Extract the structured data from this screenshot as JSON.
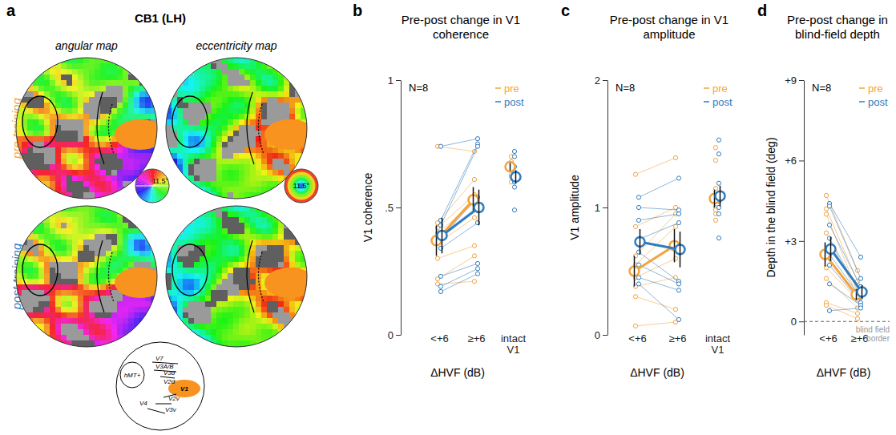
{
  "maps": {
    "label": "a",
    "title": "CB1 (LH)",
    "columns": [
      "angular map",
      "eccentricity map"
    ],
    "rows": [
      "pre-training",
      "post-training"
    ],
    "scale_label": "11.5°",
    "schematic": [
      "V7",
      "V3A/B",
      "V3d",
      "V2d",
      "V1",
      "V4",
      "V2v",
      "V3v",
      "hMT+"
    ]
  },
  "chart_data": [
    {
      "label": "b",
      "type": "scatter",
      "title": "Pre-post change in V1 coherence",
      "annotation": "N=8",
      "x_label": "ΔHVF (dB)",
      "y_label": "V1 coherence",
      "categories": [
        "<+6",
        "≥+6",
        "intact V1"
      ],
      "ylim": [
        0,
        1
      ],
      "yticks": [
        0,
        {
          "value": 0.5,
          "label": ".5"
        },
        1
      ],
      "legend": "top-right",
      "series": [
        {
          "name": "pre",
          "color": "#f4a33d",
          "values": [
            0.37,
            0.53,
            0.66
          ],
          "error": [
            0.06,
            0.05,
            0.015
          ],
          "points": [
            [
              0.74,
              0.44,
              0.42,
              0.4,
              0.36,
              0.3,
              0.22,
              0.2
            ],
            [
              0.72,
              0.61,
              0.55,
              0.52,
              0.46,
              0.35,
              0.31,
              0.21
            ],
            [
              0.7,
              0.68,
              0.67,
              0.66,
              0.65,
              0.63,
              0.62,
              0.6
            ]
          ]
        },
        {
          "name": "post",
          "color": "#2f7cc0",
          "values": [
            0.39,
            0.5,
            0.62
          ],
          "error": [
            0.07,
            0.07,
            0.025
          ],
          "points": [
            [
              0.74,
              0.45,
              0.43,
              0.38,
              0.34,
              0.23,
              0.19,
              0.17
            ],
            [
              0.77,
              0.75,
              0.74,
              0.54,
              0.44,
              0.28,
              0.26,
              0.24
            ],
            [
              0.72,
              0.7,
              0.66,
              0.64,
              0.62,
              0.6,
              0.58,
              0.49
            ]
          ]
        }
      ]
    },
    {
      "label": "c",
      "type": "scatter",
      "title": "Pre-post change in V1 amplitude",
      "annotation": "N=8",
      "x_label": "ΔHVF (dB)",
      "y_label": "V1 amplitude",
      "categories": [
        "<+6",
        "≥+6",
        "intact V1"
      ],
      "ylim": [
        0,
        2
      ],
      "yticks": [
        0,
        1,
        2
      ],
      "legend": "top-right",
      "series": [
        {
          "name": "pre",
          "color": "#f4a33d",
          "values": [
            0.5,
            0.7,
            1.07
          ],
          "error": [
            0.12,
            0.13,
            0.07
          ],
          "points": [
            [
              1.26,
              0.85,
              0.62,
              0.55,
              0.45,
              0.38,
              0.3,
              0.07
            ],
            [
              1.39,
              1.0,
              0.95,
              0.85,
              0.6,
              0.45,
              0.2,
              0.1
            ],
            [
              1.47,
              1.37,
              1.15,
              1.05,
              1.0,
              0.98,
              0.95,
              0.9
            ]
          ]
        },
        {
          "name": "post",
          "color": "#2f7cc0",
          "values": [
            0.73,
            0.67,
            1.09
          ],
          "error": [
            0.1,
            0.14,
            0.08
          ],
          "points": [
            [
              1.08,
              1.0,
              0.9,
              0.75,
              0.65,
              0.55,
              0.45,
              0.4
            ],
            [
              1.23,
              0.98,
              0.95,
              0.88,
              0.42,
              0.4,
              0.35,
              0.12
            ],
            [
              1.53,
              1.42,
              1.19,
              1.1,
              1.05,
              1.0,
              0.95,
              0.76
            ]
          ]
        }
      ]
    },
    {
      "label": "d",
      "type": "scatter",
      "title": "Pre-post change in blind-field depth",
      "annotation": "N=8",
      "x_label": "ΔHVF (dB)",
      "y_label": "Depth in the blind field (deg)",
      "categories": [
        "<+6",
        "≥+6"
      ],
      "ylim": [
        -0.5,
        9
      ],
      "yticks": [
        0,
        {
          "value": 3,
          "label": "+3"
        },
        {
          "value": 6,
          "label": "+6"
        },
        {
          "value": 9,
          "label": "+9"
        }
      ],
      "legend": "top-right",
      "reference_line": {
        "value": 0,
        "label": "blind field border"
      },
      "series": [
        {
          "name": "pre",
          "color": "#f4a33d",
          "values": [
            2.5,
            1.0
          ],
          "error": [
            0.45,
            0.2
          ],
          "points": [
            [
              4.7,
              4.2,
              4.0,
              3.3,
              2.0,
              1.6,
              0.7,
              0.6
            ],
            [
              1.9,
              1.5,
              1.1,
              1.0,
              0.8,
              0.5,
              0.3,
              0.1
            ]
          ]
        },
        {
          "name": "post",
          "color": "#2f7cc0",
          "values": [
            2.7,
            1.1
          ],
          "error": [
            0.45,
            0.25
          ],
          "points": [
            [
              4.4,
              4.3,
              3.6,
              3.1,
              2.5,
              2.1,
              1.4,
              0.4
            ],
            [
              2.4,
              1.6,
              1.3,
              1.0,
              0.9,
              0.7,
              0.6,
              0.5
            ]
          ]
        }
      ]
    }
  ]
}
